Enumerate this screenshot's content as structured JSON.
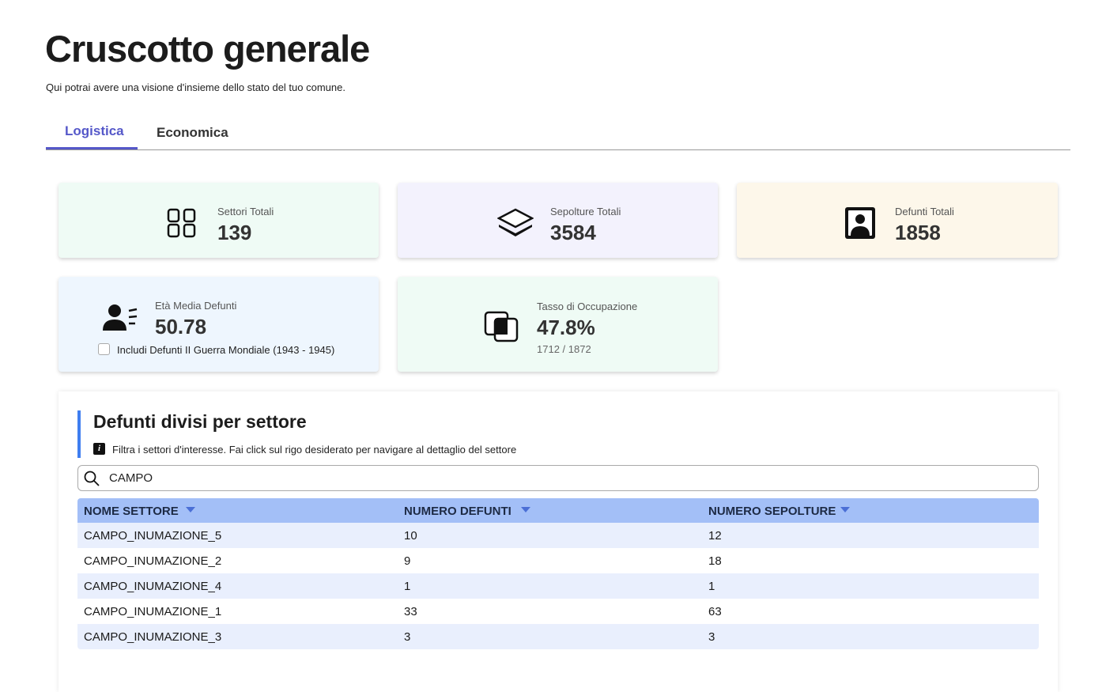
{
  "header": {
    "title": "Cruscotto generale",
    "subtitle": "Qui potrai avere una visione d'insieme dello stato del tuo comune."
  },
  "tabs": [
    "Logistica",
    "Economica"
  ],
  "cards": [
    {
      "label": "Settori Totali",
      "value": "139"
    },
    {
      "label": "Sepolture Totali",
      "value": "3584"
    },
    {
      "label": "Defunti Totali",
      "value": "1858"
    },
    {
      "label": "Età Media Defunti",
      "value": "50.78",
      "checkbox": "Includi Defunti II Guerra Mondiale (1943 - 1945)"
    },
    {
      "label": "Tasso di Occupazione",
      "value": "47.8%",
      "detail": "1712 / 1872"
    }
  ],
  "section": {
    "title": "Defunti divisi per settore",
    "info": "Filtra i settori d'interesse. Fai click sul rigo desiderato per navigare al dettaglio del settore",
    "search": "CAMPO"
  },
  "table": {
    "headers": [
      "NOME SETTORE",
      "NUMERO DEFUNTI",
      "NUMERO SEPOLTURE"
    ],
    "rows": [
      [
        "CAMPO_INUMAZIONE_5",
        "10",
        "12"
      ],
      [
        "CAMPO_INUMAZIONE_2",
        "9",
        "18"
      ],
      [
        "CAMPO_INUMAZIONE_4",
        "1",
        "1"
      ],
      [
        "CAMPO_INUMAZIONE_1",
        "33",
        "63"
      ],
      [
        "CAMPO_INUMAZIONE_3",
        "3",
        "3"
      ]
    ]
  }
}
